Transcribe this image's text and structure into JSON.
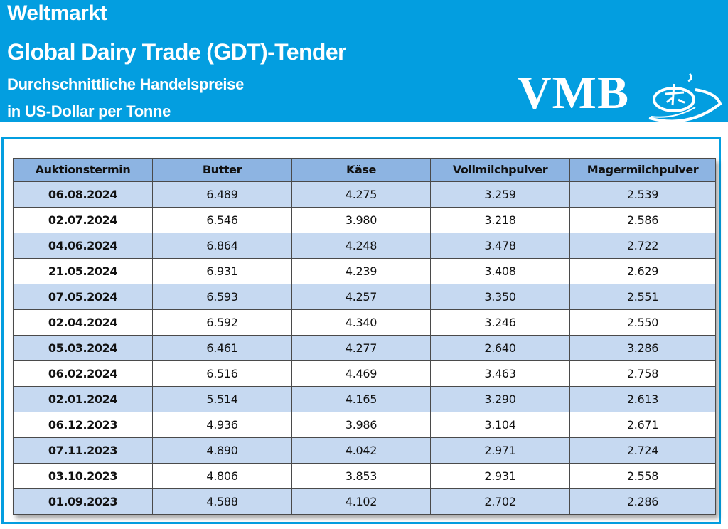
{
  "header": {
    "title_line1": "Weltmarkt",
    "title_line2": "Global Dairy Trade (GDT)-Tender",
    "subtitle_line1": "Durchschnittliche Handelspreise",
    "subtitle_line2": "in US-Dollar per Tonne",
    "logo_text": "VMB",
    "logo_icon": "vmb-swirl-logo-icon",
    "background_color": "#039ee0"
  },
  "table": {
    "columns": [
      "Auktionstermin",
      "Butter",
      "Käse",
      "Vollmilchpulver",
      "Magermilchpulver"
    ],
    "header_color": "#8db4e2",
    "stripe_color": "#c6d9f1",
    "rows": [
      [
        "06.08.2024",
        "6.489",
        "4.275",
        "3.259",
        "2.539"
      ],
      [
        "02.07.2024",
        "6.546",
        "3.980",
        "3.218",
        "2.586"
      ],
      [
        "04.06.2024",
        "6.864",
        "4.248",
        "3.478",
        "2.722"
      ],
      [
        "21.05.2024",
        "6.931",
        "4.239",
        "3.408",
        "2.629"
      ],
      [
        "07.05.2024",
        "6.593",
        "4.257",
        "3.350",
        "2.551"
      ],
      [
        "02.04.2024",
        "6.592",
        "4.340",
        "3.246",
        "2.550"
      ],
      [
        "05.03.2024",
        "6.461",
        "4.277",
        "2.640",
        "3.286"
      ],
      [
        "06.02.2024",
        "6.516",
        "4.469",
        "3.463",
        "2.758"
      ],
      [
        "02.01.2024",
        "5.514",
        "4.165",
        "3.290",
        "2.613"
      ],
      [
        "06.12.2023",
        "4.936",
        "3.986",
        "3.104",
        "2.671"
      ],
      [
        "07.11.2023",
        "4.890",
        "4.042",
        "2.971",
        "2.724"
      ],
      [
        "03.10.2023",
        "4.806",
        "3.853",
        "2.931",
        "2.558"
      ],
      [
        "01.09.2023",
        "4.588",
        "4.102",
        "2.702",
        "2.286"
      ]
    ]
  }
}
